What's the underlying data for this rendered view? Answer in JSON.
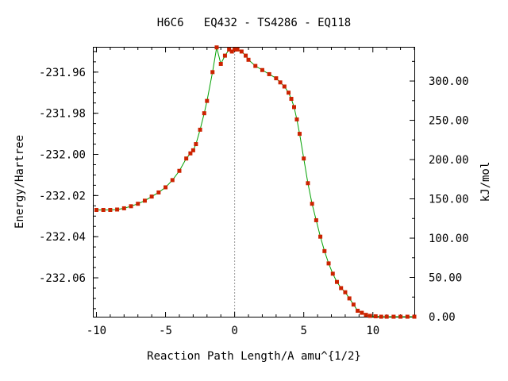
{
  "chart_data": {
    "type": "line",
    "title": "H6C6   EQ432 - TS4286 - EQ118",
    "xlabel": "Reaction Path Length/A amu^{1/2}",
    "ylabel": "Energy/Hartree",
    "y2label": "kJ/mol",
    "xlim": [
      -10.2,
      13.0
    ],
    "ylim": [
      -232.0789,
      -231.9481
    ],
    "y2lim": [
      0.0,
      342.5
    ],
    "x_ticks": [
      -10,
      -5,
      0,
      5,
      10
    ],
    "x_tick_labels": [
      "-10",
      "-5",
      "0",
      "5",
      "10"
    ],
    "y_ticks": [
      -231.96,
      -231.98,
      -232.0,
      -232.02,
      -232.04,
      -232.06
    ],
    "y_tick_labels": [
      "-231.96",
      "-231.98",
      "-232.00",
      "-232.02",
      "-232.04",
      "-232.06"
    ],
    "y2_ticks": [
      300,
      250,
      200,
      150,
      100,
      50,
      0
    ],
    "y2_tick_labels": [
      "300.00",
      "250.00",
      "200.00",
      "150.00",
      "100.00",
      "50.00",
      "0.00"
    ],
    "ts_marker_x": 0,
    "grid": false,
    "colors": {
      "line": "#00a000",
      "marker": "#cc2200",
      "ts_line": "#999999",
      "axis": "#000000"
    },
    "series": [
      {
        "x": [
          -10.0,
          -9.5,
          -9.0,
          -8.5,
          -8.0,
          -7.5,
          -7.0,
          -6.5,
          -6.0,
          -5.5,
          -5.0,
          -4.5,
          -4.0,
          -3.5,
          -3.2,
          -3.0,
          -2.8,
          -2.5,
          -2.2,
          -2.0,
          -1.6,
          -1.3,
          -1.0,
          -0.7,
          -0.4,
          -0.2,
          0.0,
          0.2,
          0.5,
          0.8,
          1.0,
          1.5,
          2.0,
          2.5,
          3.0,
          3.3,
          3.6,
          3.9,
          4.1,
          4.3,
          4.5,
          4.7,
          5.0,
          5.3,
          5.6,
          5.9,
          6.2,
          6.5,
          6.8,
          7.1,
          7.4,
          7.7,
          8.0,
          8.3,
          8.6,
          8.9,
          9.2,
          9.5,
          9.8,
          10.2,
          10.6,
          11.0,
          11.5,
          12.0,
          12.5,
          13.0
        ],
        "y": [
          -232.027,
          -232.027,
          -232.027,
          -232.0268,
          -232.0262,
          -232.0252,
          -232.024,
          -232.0225,
          -232.0205,
          -232.0185,
          -232.016,
          -232.0125,
          -232.008,
          -232.002,
          -231.9995,
          -231.998,
          -231.995,
          -231.988,
          -231.98,
          -231.974,
          -231.96,
          -231.948,
          -231.956,
          -231.952,
          -231.949,
          -231.95,
          -231.949,
          -231.949,
          -231.95,
          -231.952,
          -231.954,
          -231.957,
          -231.959,
          -231.961,
          -231.963,
          -231.965,
          -231.967,
          -231.97,
          -231.973,
          -231.977,
          -231.983,
          -231.99,
          -232.002,
          -232.014,
          -232.024,
          -232.032,
          -232.04,
          -232.047,
          -232.053,
          -232.058,
          -232.062,
          -232.065,
          -232.067,
          -232.07,
          -232.073,
          -232.076,
          -232.077,
          -232.078,
          -232.0785,
          -232.0787,
          -232.0789,
          -232.0789,
          -232.0789,
          -232.0789,
          -232.0789,
          -232.0789
        ]
      }
    ]
  }
}
